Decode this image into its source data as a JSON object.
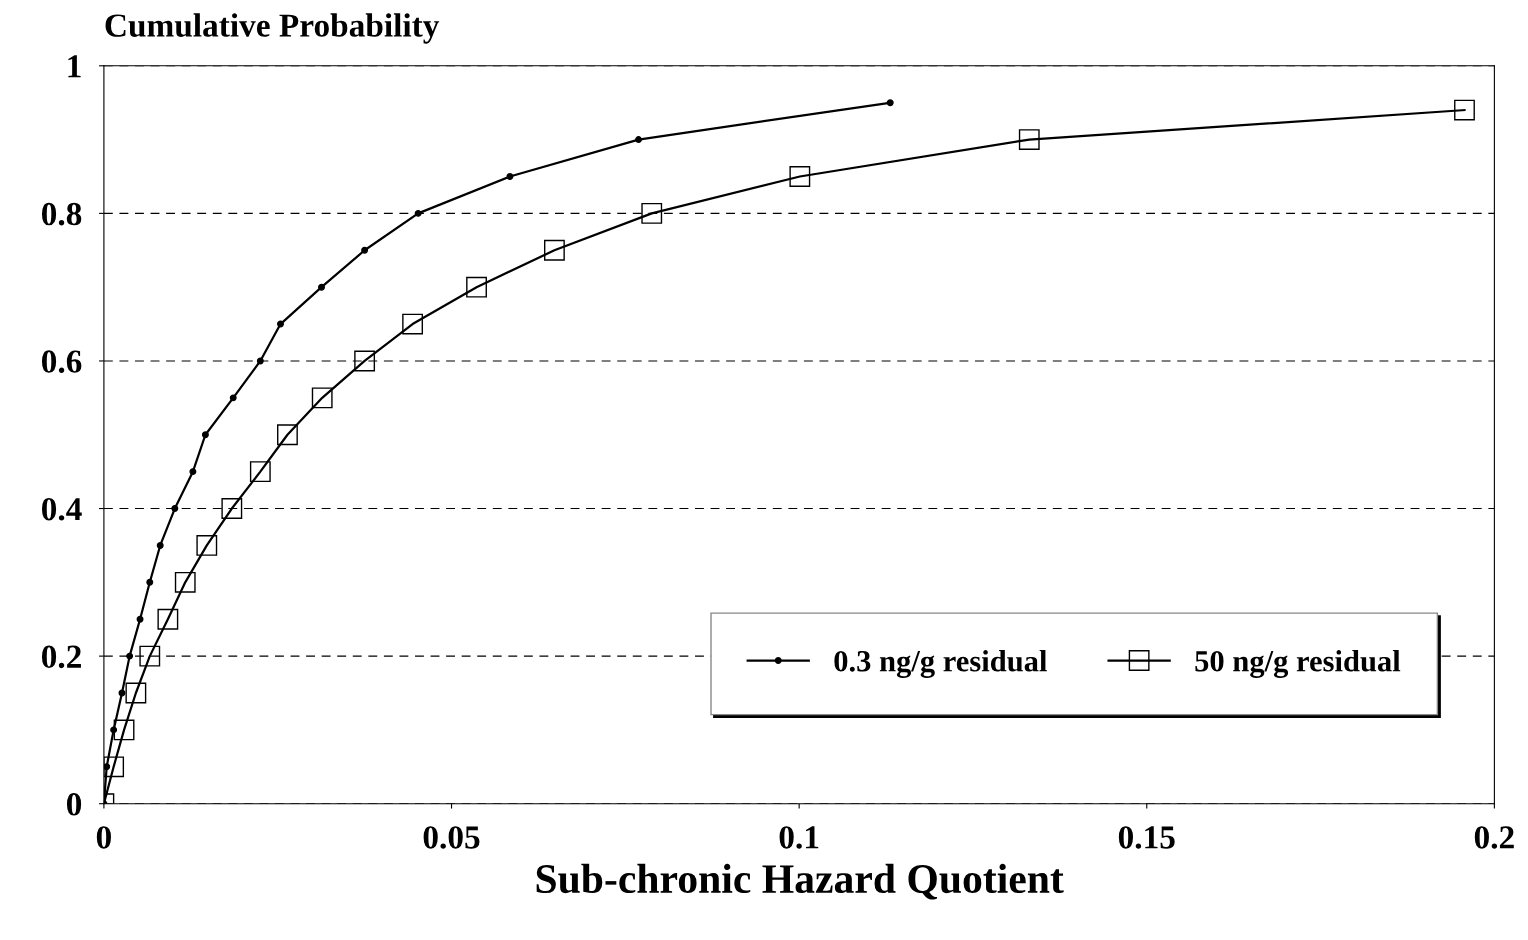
{
  "chart_data": {
    "type": "line",
    "xlabel": "Sub-chronic Hazard Quotient",
    "ylabel": "Cumulative Probability",
    "xlim": [
      0,
      0.2
    ],
    "xticks": [
      0,
      0.05,
      0.1,
      0.15,
      0.2
    ],
    "ylim": [
      0,
      1
    ],
    "yticks": [
      0,
      0.2,
      0.4,
      0.6,
      0.8,
      1
    ],
    "grid": "y",
    "legend": "bottom right",
    "series": [
      {
        "name": "0.3 ng/g residual",
        "color": "#000000",
        "marker": "circle",
        "x": [
          0,
          0.0004,
          0.0014,
          0.0026,
          0.0037,
          0.0052,
          0.0066,
          0.0081,
          0.0102,
          0.0128,
          0.0146,
          0.0186,
          0.0225,
          0.0254,
          0.0313,
          0.0375,
          0.0452,
          0.0584,
          0.0769,
          0.1131
        ],
        "values": [
          0,
          0.05,
          0.1,
          0.15,
          0.2,
          0.25,
          0.3,
          0.35,
          0.4,
          0.45,
          0.5,
          0.55,
          0.6,
          0.65,
          0.7,
          0.75,
          0.8,
          0.85,
          0.9,
          0.95
        ]
      },
      {
        "name": "50 ng/g residual",
        "color": "#000000",
        "marker": "square",
        "x": [
          0,
          0.0014,
          0.0029,
          0.0046,
          0.0066,
          0.0092,
          0.0117,
          0.0148,
          0.0184,
          0.0225,
          0.0264,
          0.0314,
          0.0375,
          0.0444,
          0.0536,
          0.0648,
          0.0788,
          0.1001,
          0.1331,
          0.1957
        ],
        "values": [
          0,
          0.05,
          0.1,
          0.15,
          0.2,
          0.25,
          0.3,
          0.35,
          0.4,
          0.45,
          0.5,
          0.55,
          0.6,
          0.65,
          0.7,
          0.75,
          0.8,
          0.85,
          0.9,
          0.94
        ]
      }
    ]
  }
}
